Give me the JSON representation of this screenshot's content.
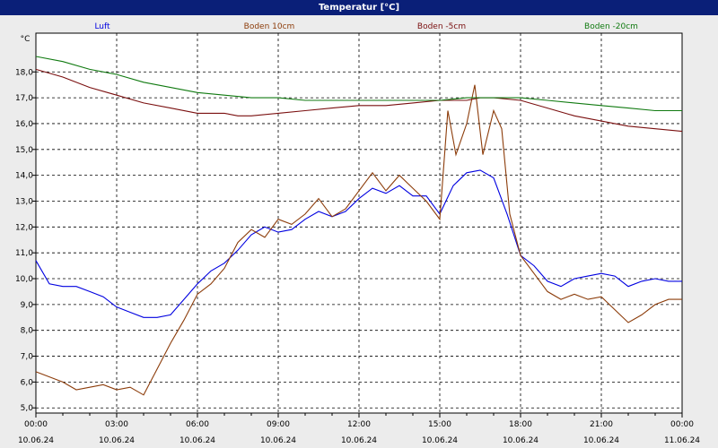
{
  "window": {
    "title": "Temperatur [°C]"
  },
  "chart_data": {
    "type": "line",
    "title": "Temperatur [°C]",
    "ylabel": "°C",
    "ylim": [
      4.8,
      19.5
    ],
    "y_ticks": [
      "5,0",
      "6,0",
      "7,0",
      "8,0",
      "9,0",
      "10,0",
      "11,0",
      "12,0",
      "13,0",
      "14,0",
      "15,0",
      "16,0",
      "17,0",
      "18,0"
    ],
    "x_ticks": [
      {
        "time": "00:00",
        "date": "10.06.24"
      },
      {
        "time": "03:00",
        "date": "10.06.24"
      },
      {
        "time": "06:00",
        "date": "10.06.24"
      },
      {
        "time": "09:00",
        "date": "10.06.24"
      },
      {
        "time": "12:00",
        "date": "10.06.24"
      },
      {
        "time": "15:00",
        "date": "10.06.24"
      },
      {
        "time": "18:00",
        "date": "10.06.24"
      },
      {
        "time": "21:00",
        "date": "10.06.24"
      },
      {
        "time": "00:00",
        "date": "11.06.24"
      }
    ],
    "grid": true,
    "legend_position": "top",
    "series": [
      {
        "name": "Luft",
        "color": "#0000e0",
        "points": [
          [
            0,
            10.7
          ],
          [
            0.5,
            9.8
          ],
          [
            1,
            9.7
          ],
          [
            1.5,
            9.7
          ],
          [
            2,
            9.5
          ],
          [
            2.5,
            9.3
          ],
          [
            3,
            8.9
          ],
          [
            3.5,
            8.7
          ],
          [
            4,
            8.5
          ],
          [
            4.5,
            8.5
          ],
          [
            5,
            8.6
          ],
          [
            5.5,
            9.2
          ],
          [
            6,
            9.8
          ],
          [
            6.5,
            10.3
          ],
          [
            7,
            10.6
          ],
          [
            7.5,
            11.1
          ],
          [
            8,
            11.7
          ],
          [
            8.5,
            12.0
          ],
          [
            9,
            11.8
          ],
          [
            9.5,
            11.9
          ],
          [
            10,
            12.3
          ],
          [
            10.5,
            12.6
          ],
          [
            11,
            12.4
          ],
          [
            11.5,
            12.6
          ],
          [
            12,
            13.1
          ],
          [
            12.5,
            13.5
          ],
          [
            13,
            13.3
          ],
          [
            13.5,
            13.6
          ],
          [
            14,
            13.2
          ],
          [
            14.5,
            13.2
          ],
          [
            15,
            12.5
          ],
          [
            15.5,
            13.6
          ],
          [
            16,
            14.1
          ],
          [
            16.5,
            14.2
          ],
          [
            17,
            13.9
          ],
          [
            17.5,
            12.5
          ],
          [
            18,
            10.9
          ],
          [
            18.5,
            10.5
          ],
          [
            19,
            9.9
          ],
          [
            19.5,
            9.7
          ],
          [
            20,
            10.0
          ],
          [
            20.5,
            10.1
          ],
          [
            21,
            10.2
          ],
          [
            21.5,
            10.1
          ],
          [
            22,
            9.7
          ],
          [
            22.5,
            9.9
          ],
          [
            23,
            10.0
          ],
          [
            23.5,
            9.9
          ],
          [
            24,
            9.9
          ]
        ]
      },
      {
        "name": "Boden 10cm",
        "color": "#8c3c0a",
        "points": [
          [
            0,
            6.4
          ],
          [
            0.5,
            6.2
          ],
          [
            1,
            6.0
          ],
          [
            1.5,
            5.7
          ],
          [
            2,
            5.8
          ],
          [
            2.5,
            5.9
          ],
          [
            3,
            5.7
          ],
          [
            3.5,
            5.8
          ],
          [
            4,
            5.5
          ],
          [
            4.5,
            6.5
          ],
          [
            5,
            7.5
          ],
          [
            5.5,
            8.4
          ],
          [
            6,
            9.4
          ],
          [
            6.5,
            9.8
          ],
          [
            7,
            10.4
          ],
          [
            7.5,
            11.4
          ],
          [
            8,
            11.9
          ],
          [
            8.5,
            11.6
          ],
          [
            9,
            12.3
          ],
          [
            9.5,
            12.1
          ],
          [
            10,
            12.5
          ],
          [
            10.5,
            13.1
          ],
          [
            11,
            12.4
          ],
          [
            11.5,
            12.7
          ],
          [
            12,
            13.4
          ],
          [
            12.5,
            14.1
          ],
          [
            13,
            13.4
          ],
          [
            13.5,
            14.0
          ],
          [
            14,
            13.5
          ],
          [
            14.5,
            13.0
          ],
          [
            15,
            12.3
          ],
          [
            15.3,
            16.5
          ],
          [
            15.6,
            14.8
          ],
          [
            16,
            16.0
          ],
          [
            16.3,
            17.5
          ],
          [
            16.6,
            14.8
          ],
          [
            17,
            16.5
          ],
          [
            17.3,
            15.8
          ],
          [
            17.6,
            12.5
          ],
          [
            18,
            10.9
          ],
          [
            18.5,
            10.2
          ],
          [
            19,
            9.5
          ],
          [
            19.5,
            9.2
          ],
          [
            20,
            9.4
          ],
          [
            20.5,
            9.2
          ],
          [
            21,
            9.3
          ],
          [
            21.5,
            8.8
          ],
          [
            22,
            8.3
          ],
          [
            22.5,
            8.6
          ],
          [
            23,
            9.0
          ],
          [
            23.5,
            9.2
          ],
          [
            24,
            9.2
          ]
        ]
      },
      {
        "name": "Boden -5cm",
        "color": "#7a0f0f",
        "points": [
          [
            0,
            18.1
          ],
          [
            1,
            17.8
          ],
          [
            2,
            17.4
          ],
          [
            3,
            17.1
          ],
          [
            4,
            16.8
          ],
          [
            5,
            16.6
          ],
          [
            6,
            16.4
          ],
          [
            7,
            16.4
          ],
          [
            7.5,
            16.3
          ],
          [
            8,
            16.3
          ],
          [
            9,
            16.4
          ],
          [
            10,
            16.5
          ],
          [
            11,
            16.6
          ],
          [
            12,
            16.7
          ],
          [
            13,
            16.7
          ],
          [
            14,
            16.8
          ],
          [
            15,
            16.9
          ],
          [
            16,
            16.9
          ],
          [
            16.5,
            17.0
          ],
          [
            17,
            17.0
          ],
          [
            18,
            16.9
          ],
          [
            19,
            16.6
          ],
          [
            20,
            16.3
          ],
          [
            21,
            16.1
          ],
          [
            22,
            15.9
          ],
          [
            23,
            15.8
          ],
          [
            24,
            15.7
          ]
        ]
      },
      {
        "name": "Boden -20cm",
        "color": "#107a10",
        "points": [
          [
            0,
            18.6
          ],
          [
            1,
            18.4
          ],
          [
            2,
            18.1
          ],
          [
            3,
            17.9
          ],
          [
            4,
            17.6
          ],
          [
            5,
            17.4
          ],
          [
            6,
            17.2
          ],
          [
            7,
            17.1
          ],
          [
            8,
            17.0
          ],
          [
            9,
            17.0
          ],
          [
            10,
            16.9
          ],
          [
            11,
            16.9
          ],
          [
            12,
            16.9
          ],
          [
            13,
            16.9
          ],
          [
            14,
            16.9
          ],
          [
            15,
            16.9
          ],
          [
            16,
            17.0
          ],
          [
            17,
            17.0
          ],
          [
            18,
            17.0
          ],
          [
            19,
            16.9
          ],
          [
            20,
            16.8
          ],
          [
            21,
            16.7
          ],
          [
            22,
            16.6
          ],
          [
            23,
            16.5
          ],
          [
            24,
            16.5
          ]
        ]
      }
    ]
  }
}
